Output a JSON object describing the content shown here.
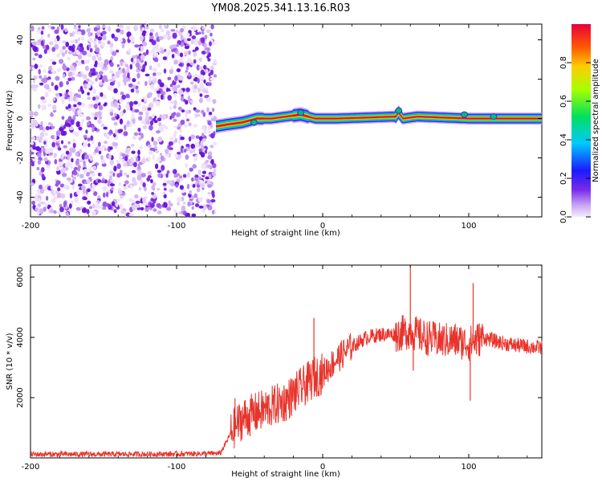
{
  "title": "YM08.2025.341.13.16.R03",
  "colors": {
    "line": "#e8332b",
    "ridge_core": "#e0114b",
    "noise": "#8a2be2",
    "axes": "#000000"
  },
  "chart_data": [
    {
      "type": "heatmap",
      "name": "spectrogram",
      "title": "YM08.2025.341.13.16.R03",
      "xlabel": "Height of straight line (km)",
      "ylabel": "Frequency (Hz)",
      "xlim": [
        -200,
        150
      ],
      "ylim": [
        -50,
        48
      ],
      "xticks": [
        -200,
        -100,
        0,
        100
      ],
      "yticks": [
        -40,
        -20,
        0,
        20,
        40
      ],
      "colorbar": {
        "label": "Normalized spectral amplitude",
        "range": [
          0,
          1
        ],
        "ticks": [
          0.0,
          0.2,
          0.4,
          0.6,
          0.8
        ],
        "tick_labels": [
          "0.0",
          "0.2",
          "0.4",
          "0.6",
          "0.8"
        ],
        "colormap": "rainbow"
      },
      "features": {
        "noise_region_x": [
          -200,
          -73
        ],
        "ridge_frequency_hz": 0,
        "ridge_start_x": -73,
        "ridge_points": [
          [
            -73,
            -4
          ],
          [
            -65,
            -3
          ],
          [
            -55,
            -2
          ],
          [
            -45,
            0
          ],
          [
            -35,
            0
          ],
          [
            -25,
            1
          ],
          [
            -15,
            2
          ],
          [
            -10,
            1
          ],
          [
            -5,
            0
          ],
          [
            10,
            0
          ],
          [
            50,
            1
          ],
          [
            52,
            3
          ],
          [
            55,
            0
          ],
          [
            65,
            1
          ],
          [
            100,
            0
          ],
          [
            150,
            0
          ]
        ]
      }
    },
    {
      "type": "line",
      "name": "snr",
      "xlabel": "Height of straight line (km)",
      "ylabel": "SNR (10 * v/v)",
      "xlim": [
        -200,
        150
      ],
      "ylim": [
        0,
        6400
      ],
      "xticks": [
        -200,
        -100,
        0,
        100
      ],
      "yticks": [
        2000,
        4000,
        6000
      ],
      "series": [
        {
          "name": "SNR",
          "x": [
            -200,
            -150,
            -100,
            -70,
            -62,
            -55,
            -45,
            -35,
            -25,
            -15,
            -5,
            0,
            10,
            20,
            30,
            40,
            50,
            60,
            70,
            80,
            90,
            100,
            110,
            120,
            130,
            140,
            150
          ],
          "y": [
            120,
            120,
            130,
            150,
            900,
            1300,
            1500,
            1700,
            1900,
            2300,
            2700,
            2800,
            3300,
            3700,
            4000,
            4100,
            4100,
            4200,
            4000,
            3900,
            3900,
            3800,
            4000,
            3850,
            3750,
            3700,
            3650
          ]
        }
      ],
      "spikes": [
        [
          -60,
          1980
        ],
        [
          -45,
          1700
        ],
        [
          -6,
          4650
        ],
        [
          60,
          6380
        ],
        [
          103,
          5800
        ],
        [
          101,
          1900
        ],
        [
          62,
          2900
        ]
      ]
    }
  ]
}
